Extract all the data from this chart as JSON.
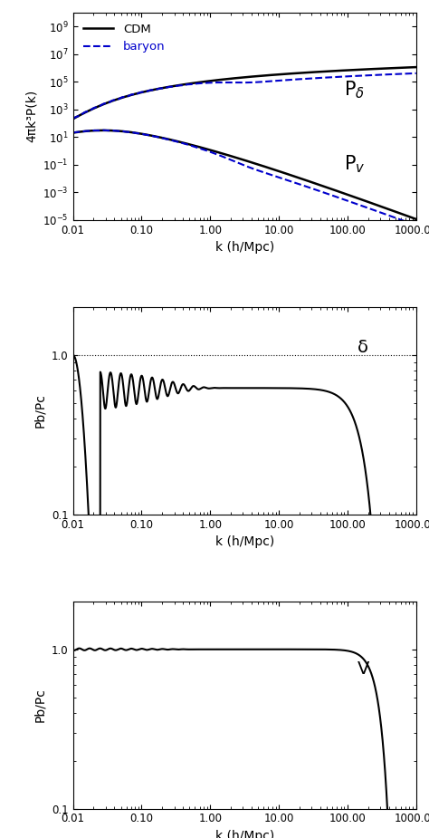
{
  "fig_width": 4.74,
  "fig_height": 9.25,
  "dpi": 100,
  "panel1": {
    "ylabel": "4πk³P(k)",
    "xlabel": "k (h/Mpc)",
    "xlim": [
      0.01,
      1000.0
    ],
    "ylim": [
      1e-05,
      10000000000.0
    ],
    "legend_cdm": "CDM",
    "legend_baryon": "baryon",
    "cdm_color": "#000000",
    "baryon_color": "#0000cc"
  },
  "panel2": {
    "ylabel": "Pb/Pc",
    "xlabel": "k (h/Mpc)",
    "xlim": [
      0.01,
      1000.0
    ],
    "ylim": [
      0.1,
      2.0
    ],
    "label": "δ",
    "line_color": "#000000"
  },
  "panel3": {
    "ylabel": "Pb/Pc",
    "xlabel": "k (h/Mpc)",
    "xlim": [
      0.01,
      1000.0
    ],
    "ylim": [
      0.1,
      2.0
    ],
    "label": "V",
    "line_color": "#000000"
  }
}
